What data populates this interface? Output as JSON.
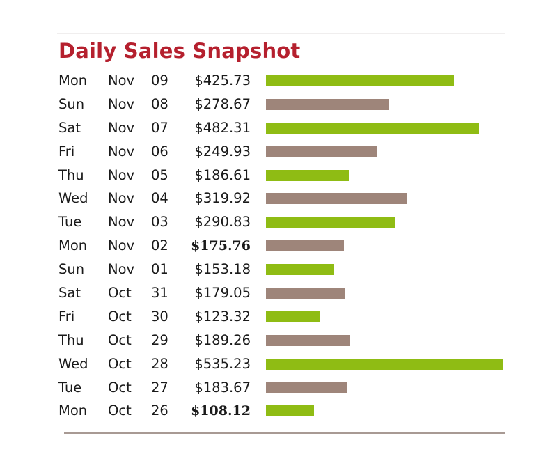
{
  "title": "Daily Sales Snapshot",
  "colors": {
    "title": "#b5202e",
    "bar_even": "#8fbc14",
    "bar_odd": "#9e857a",
    "rule": "#a89a94"
  },
  "rows": [
    {
      "dow": "Mon",
      "month": "Nov",
      "day": "09",
      "amount": "$425.73",
      "value": 425.73,
      "bold": false
    },
    {
      "dow": "Sun",
      "month": "Nov",
      "day": "08",
      "amount": "$278.67",
      "value": 278.67,
      "bold": false
    },
    {
      "dow": "Sat",
      "month": "Nov",
      "day": "07",
      "amount": "$482.31",
      "value": 482.31,
      "bold": false
    },
    {
      "dow": "Fri",
      "month": "Nov",
      "day": "06",
      "amount": "$249.93",
      "value": 249.93,
      "bold": false
    },
    {
      "dow": "Thu",
      "month": "Nov",
      "day": "05",
      "amount": "$186.61",
      "value": 186.61,
      "bold": false
    },
    {
      "dow": "Wed",
      "month": "Nov",
      "day": "04",
      "amount": "$319.92",
      "value": 319.92,
      "bold": false
    },
    {
      "dow": "Tue",
      "month": "Nov",
      "day": "03",
      "amount": "$290.83",
      "value": 290.83,
      "bold": false
    },
    {
      "dow": "Mon",
      "month": "Nov",
      "day": "02",
      "amount": "$175.76",
      "value": 175.76,
      "bold": true
    },
    {
      "dow": "Sun",
      "month": "Nov",
      "day": "01",
      "amount": "$153.18",
      "value": 153.18,
      "bold": false
    },
    {
      "dow": "Sat",
      "month": "Oct",
      "day": "31",
      "amount": "$179.05",
      "value": 179.05,
      "bold": false
    },
    {
      "dow": "Fri",
      "month": "Oct",
      "day": "30",
      "amount": "$123.32",
      "value": 123.32,
      "bold": false
    },
    {
      "dow": "Thu",
      "month": "Oct",
      "day": "29",
      "amount": "$189.26",
      "value": 189.26,
      "bold": false
    },
    {
      "dow": "Wed",
      "month": "Oct",
      "day": "28",
      "amount": "$535.23",
      "value": 535.23,
      "bold": false
    },
    {
      "dow": "Tue",
      "month": "Oct",
      "day": "27",
      "amount": "$183.67",
      "value": 183.67,
      "bold": false
    },
    {
      "dow": "Mon",
      "month": "Oct",
      "day": "26",
      "amount": "$108.12",
      "value": 108.12,
      "bold": true
    }
  ],
  "chart_data": {
    "type": "bar",
    "orientation": "horizontal",
    "title": "Daily Sales Snapshot",
    "xlabel": "",
    "ylabel": "",
    "categories": [
      "Mon Nov 09",
      "Sun Nov 08",
      "Sat Nov 07",
      "Fri Nov 06",
      "Thu Nov 05",
      "Wed Nov 04",
      "Tue Nov 03",
      "Mon Nov 02",
      "Sun Nov 01",
      "Sat Oct 31",
      "Fri Oct 30",
      "Thu Oct 29",
      "Wed Oct 28",
      "Tue Oct 27",
      "Mon Oct 26"
    ],
    "values": [
      425.73,
      278.67,
      482.31,
      249.93,
      186.61,
      319.92,
      290.83,
      175.76,
      153.18,
      179.05,
      123.32,
      189.26,
      535.23,
      183.67,
      108.12
    ],
    "value_labels": [
      "$425.73",
      "$278.67",
      "$482.31",
      "$249.93",
      "$186.61",
      "$319.92",
      "$290.83",
      "$175.76",
      "$153.18",
      "$179.05",
      "$123.32",
      "$189.26",
      "$535.23",
      "$183.67",
      "$108.12"
    ],
    "bold_labels": [
      "$175.76",
      "$108.12"
    ],
    "bar_colors_alternating": [
      "#8fbc14",
      "#9e857a"
    ],
    "grid": false,
    "legend": "none",
    "xlim": [
      0,
      535.23
    ]
  }
}
